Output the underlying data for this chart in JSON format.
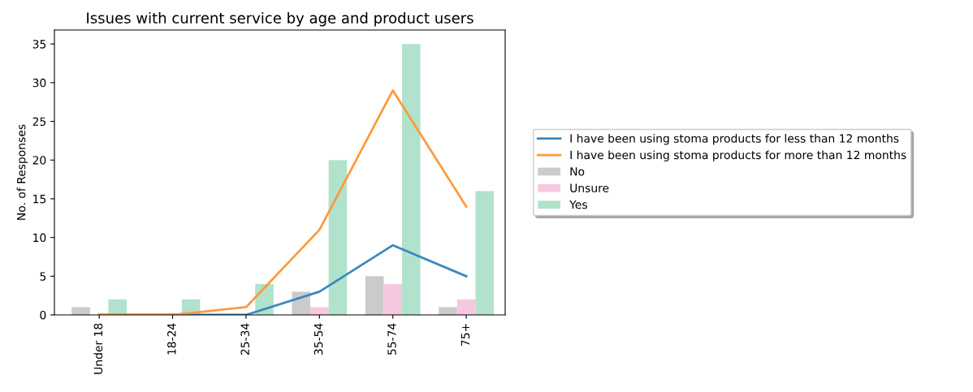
{
  "chart_data": {
    "type": "bar",
    "title": "Issues with current service by age and product users",
    "ylabel": "No. of Responses",
    "categories": [
      "Under 18",
      "18-24",
      "25-34",
      "35-54",
      "55-74",
      "75+"
    ],
    "series": [
      {
        "name": "I have been using stoma products for less than 12 months",
        "type": "line",
        "color": "#3a88c0",
        "values": [
          0,
          0,
          0,
          3,
          9,
          5
        ]
      },
      {
        "name": "I have been using stoma products for more than 12 months",
        "type": "line",
        "color": "#ff9a3c",
        "values": [
          0,
          0,
          1,
          11,
          29,
          14
        ]
      },
      {
        "name": "No",
        "color": "#cbcbcb",
        "values": [
          1,
          0,
          0,
          3,
          5,
          1
        ]
      },
      {
        "name": "Unsure",
        "color": "#f6c8e0",
        "values": [
          0,
          0,
          0,
          1,
          4,
          2
        ]
      },
      {
        "name": "Yes",
        "color": "#b1e2cc",
        "values": [
          2,
          2,
          4,
          20,
          35,
          16
        ]
      }
    ],
    "ylim": [
      0,
      36.8
    ],
    "yticks": [
      0,
      5,
      10,
      15,
      20,
      25,
      30,
      35
    ],
    "grid": false,
    "legend": "right"
  }
}
